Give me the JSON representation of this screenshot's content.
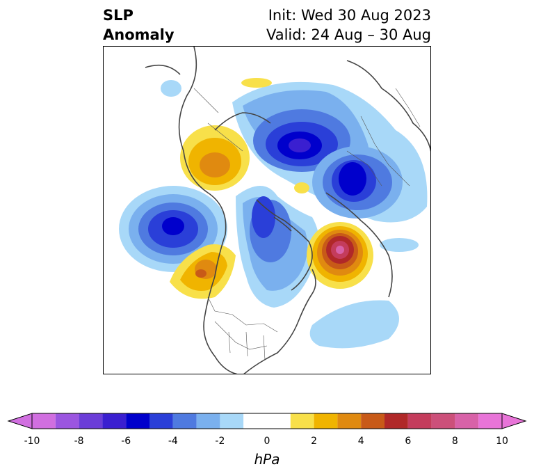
{
  "title": {
    "variable_line1": "SLP",
    "variable_line2": "Anomaly",
    "init": "Init: Wed 30 Aug 2023",
    "valid": "Valid: 24 Aug – 30 Aug"
  },
  "colorbar": {
    "unit": "hPa",
    "tick_labels": [
      "-10",
      "-8",
      "-6",
      "-4",
      "-2",
      "0",
      "2",
      "4",
      "6",
      "8",
      "10"
    ],
    "colors": [
      "#d16fe0",
      "#9b55e0",
      "#6b3dd8",
      "#3a1fd0",
      "#0000cc",
      "#2a3fd8",
      "#4f7ae0",
      "#7ab0ee",
      "#a8d8f8",
      "#ffffff",
      "#f8e04a",
      "#f0b400",
      "#e08a10",
      "#c85a18",
      "#b02828",
      "#c43c5c",
      "#cc507a",
      "#d862a8",
      "#e874d8"
    ]
  },
  "map": {
    "projection": "north-polar-stereographic",
    "field": "sea-level-pressure-anomaly",
    "features": [
      {
        "name": "north-pacific-low",
        "sign": "negative",
        "peak_hpa": -7
      },
      {
        "name": "siberia-low",
        "sign": "negative",
        "peak_hpa": -7
      },
      {
        "name": "scandinavia-low",
        "sign": "negative",
        "peak_hpa": -7
      },
      {
        "name": "arctic-canada-low",
        "sign": "negative",
        "peak_hpa": -5
      },
      {
        "name": "north-atlantic-high",
        "sign": "positive",
        "peak_hpa": 7
      },
      {
        "name": "gulf-of-alaska-high",
        "sign": "positive",
        "peak_hpa": 4
      },
      {
        "name": "china-high",
        "sign": "positive",
        "peak_hpa": 4
      },
      {
        "name": "subtropical-atlantic-weak-low",
        "sign": "negative",
        "peak_hpa": -1.5
      }
    ]
  }
}
